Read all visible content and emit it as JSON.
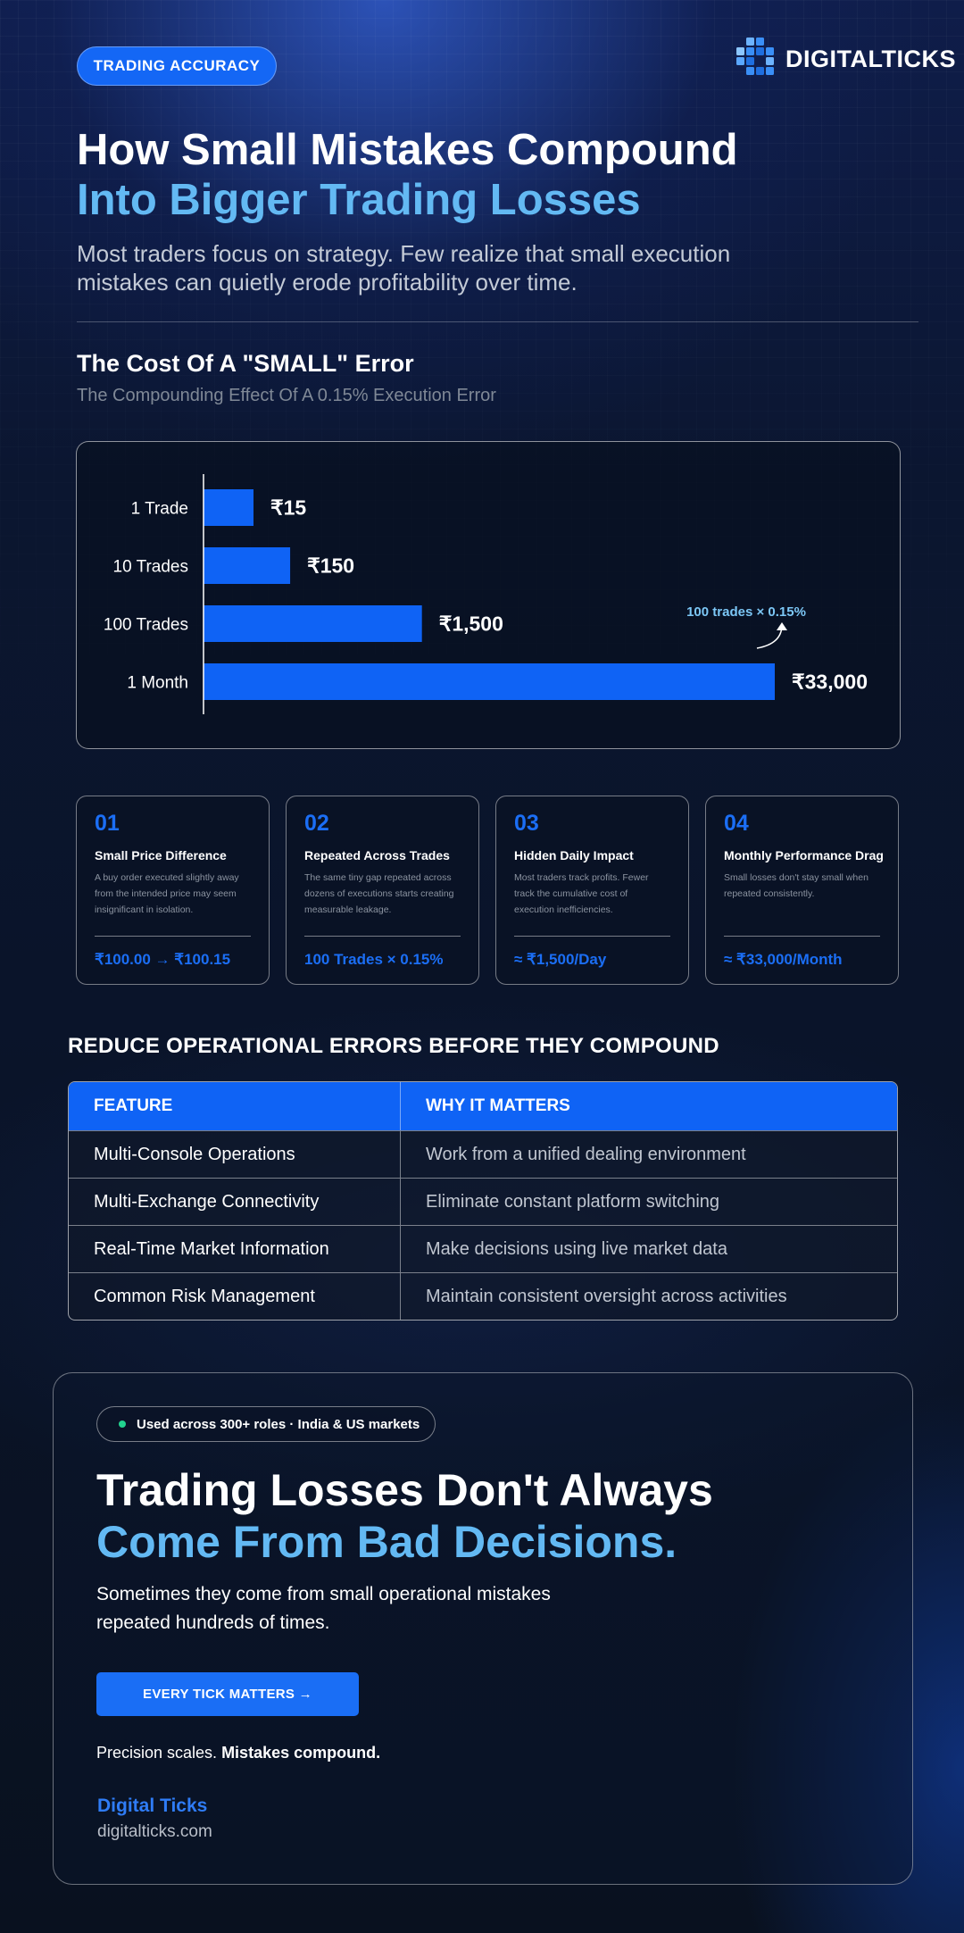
{
  "header": {
    "badge": "TRADING ACCURACY",
    "brand_logo_text": "DIGITALTICKS",
    "title_line1": "How Small Mistakes Compound",
    "title_line2": "Into Bigger Trading Losses",
    "subtitle": "Most traders focus on strategy. Few realize that small execution mistakes can quietly erode profitability over time."
  },
  "section": {
    "title": "The Cost Of A \"SMALL\" Error",
    "subtitle": "The Compounding Effect Of A 0.15% Execution Error"
  },
  "chart_data": {
    "type": "bar",
    "orientation": "horizontal",
    "title": "",
    "xlabel": "",
    "ylabel": "",
    "categories": [
      "1 Trade",
      "10 Trades",
      "100 Trades",
      "1 Month"
    ],
    "values": [
      15,
      150,
      1500,
      33000
    ],
    "value_labels": [
      "₹15",
      "₹150",
      "₹1,500",
      "₹33,000"
    ],
    "annotation": "100 trades × 0.15%",
    "bar_color": "#0f63f5",
    "grid": false
  },
  "cards": [
    {
      "num": "01",
      "head": "Small Price Difference",
      "desc": "A buy order executed slightly away from the intended price may seem insignificant in isolation.",
      "value": "₹100.00 → ₹100.15"
    },
    {
      "num": "02",
      "head": "Repeated Across Trades",
      "desc": "The same tiny gap repeated across dozens of executions starts creating measurable leakage.",
      "value": "100 Trades × 0.15%"
    },
    {
      "num": "03",
      "head": "Hidden Daily Impact",
      "desc": "Most traders track profits. Fewer track the cumulative cost of execution inefficiencies.",
      "value": "≈ ₹1,500/Day"
    },
    {
      "num": "04",
      "head": "Monthly Performance Drag",
      "desc": "Small losses don't stay small when repeated consistently.",
      "value": "≈ ₹33,000/Month"
    }
  ],
  "table": {
    "heading": "REDUCE OPERATIONAL ERRORS BEFORE THEY COMPOUND",
    "columns": [
      "FEATURE",
      "WHY IT MATTERS"
    ],
    "rows": [
      [
        "Multi-Console Operations",
        "Work from a unified dealing environment"
      ],
      [
        "Multi-Exchange Connectivity",
        "Eliminate constant platform switching"
      ],
      [
        "Real-Time Market Information",
        "Make decisions using live market data"
      ],
      [
        "Common Risk Management",
        "Maintain consistent oversight across activities"
      ]
    ]
  },
  "cta": {
    "badge": "Used across 300+ roles · India & US markets",
    "title_line1": "Trading Losses Don't Always",
    "title_line2": "Come From Bad Decisions.",
    "subtitle_line1": "Sometimes they come from small operational mistakes",
    "subtitle_line2": "repeated hundreds of times.",
    "button": "EVERY TICK MATTERS →",
    "tagline_normal": "Precision scales. ",
    "tagline_bold": "Mistakes compound.",
    "brand_name": "Digital Ticks",
    "brand_url": "digitalticks.com"
  },
  "colors": {
    "accent": "#0f63f5",
    "highlight": "#63b9f3",
    "status_dot": "#22d38f"
  }
}
